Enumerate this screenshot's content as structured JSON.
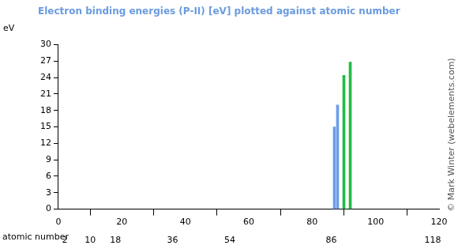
{
  "chart_data": {
    "type": "bar",
    "title": "Electron binding energies (P-II) [eV] plotted against atomic number",
    "ylabel": "eV",
    "xlabel": "atomic number",
    "x": [
      87,
      88,
      90,
      92
    ],
    "values": [
      15,
      19,
      24.4,
      26.8
    ],
    "colors": [
      "#6f9de6",
      "#6f9de6",
      "#22bb44",
      "#22bb44"
    ],
    "xlim": [
      0,
      120
    ],
    "xticks": [
      0,
      20,
      40,
      60,
      80,
      100,
      120
    ],
    "x2ticks": [
      2,
      10,
      18,
      36,
      54,
      86,
      118
    ],
    "ylim": [
      0,
      30
    ],
    "yticks": [
      0,
      3,
      6,
      9,
      12,
      15,
      18,
      21,
      24,
      27,
      30
    ],
    "grid": false,
    "annotations": [
      "© Mark Winter (webelements.com)"
    ]
  }
}
